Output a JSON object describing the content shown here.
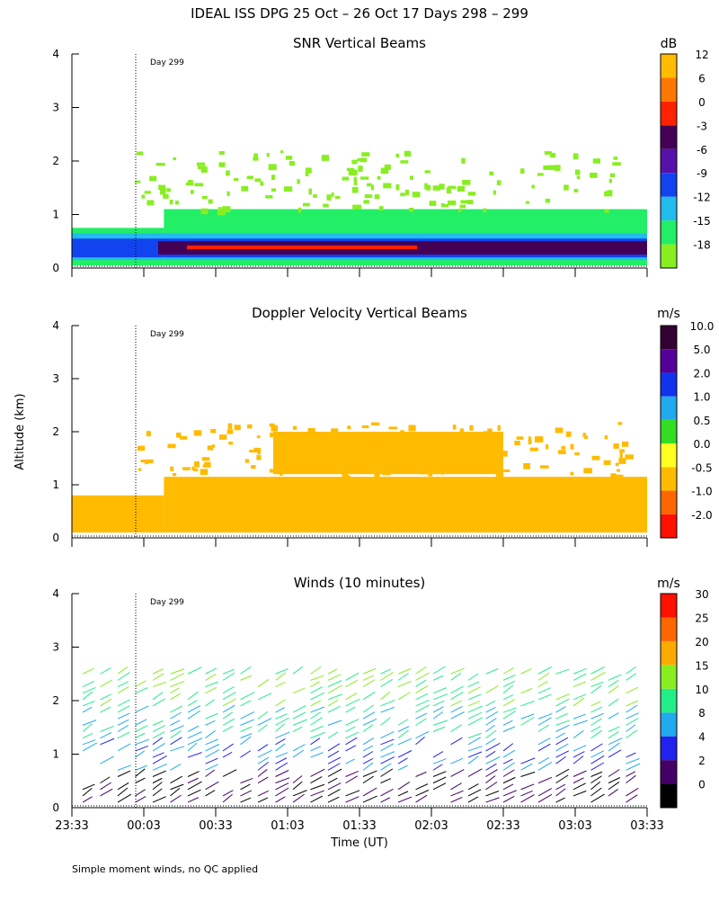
{
  "title": "IDEAL ISS DPG  25 Oct – 26 Oct 17 Days 298 – 299",
  "y_axis_label": "Altitude (km)",
  "footnote": "Simple moment winds, no QC applied",
  "chart_data": [
    {
      "type": "heatmap",
      "title": "SNR Vertical Beams",
      "unit": "dB",
      "day_marker": "Day 299",
      "ylim": [
        0,
        4
      ],
      "yticks": [
        "0",
        "1",
        "2",
        "3",
        "4"
      ],
      "xticks": [
        "23:33",
        "00:03",
        "00:33",
        "01:03",
        "01:33",
        "02:03",
        "02:33",
        "03:03",
        "03:33"
      ],
      "colorbar": [
        {
          "label": "-18",
          "color": "#88ee22"
        },
        {
          "label": "-15",
          "color": "#22ee66"
        },
        {
          "label": "-12",
          "color": "#22bbee"
        },
        {
          "label": "-9",
          "color": "#1144ee"
        },
        {
          "label": "-6",
          "color": "#5511aa"
        },
        {
          "label": "-3",
          "color": "#440055"
        },
        {
          "label": "0",
          "color": "#ff2200"
        },
        {
          "label": "6",
          "color": "#ff7700"
        },
        {
          "label": "12",
          "color": "#ffbb00"
        }
      ],
      "layers": [
        {
          "x": [
            0,
            0.16
          ],
          "y": [
            0.05,
            0.75
          ],
          "value": -15
        },
        {
          "x": [
            0.16,
            1.0
          ],
          "y": [
            0.05,
            1.1
          ],
          "value": -15
        },
        {
          "x": [
            0,
            1.0
          ],
          "y": [
            0.15,
            0.65
          ],
          "value": -12
        },
        {
          "x": [
            0,
            1.0
          ],
          "y": [
            0.2,
            0.55
          ],
          "value": -9
        },
        {
          "x": [
            0.15,
            1.0
          ],
          "y": [
            0.25,
            0.5
          ],
          "value": -3
        },
        {
          "x": [
            0.2,
            0.6
          ],
          "y": [
            0.35,
            0.42
          ],
          "value": 0
        }
      ]
    },
    {
      "type": "heatmap",
      "title": "Doppler Velocity Vertical Beams",
      "unit": "m/s",
      "day_marker": "Day 299",
      "ylim": [
        0,
        4
      ],
      "yticks": [
        "0",
        "1",
        "2",
        "3",
        "4"
      ],
      "xticks": [
        "23:33",
        "00:03",
        "00:33",
        "01:03",
        "01:33",
        "02:03",
        "02:33",
        "03:03",
        "03:33"
      ],
      "colorbar": [
        {
          "label": "-2.0",
          "color": "#ff1100"
        },
        {
          "label": "-1.0",
          "color": "#ff6600"
        },
        {
          "label": "-0.5",
          "color": "#ffbb00"
        },
        {
          "label": "0.0",
          "color": "#ffff22"
        },
        {
          "label": "0.5",
          "color": "#33dd22"
        },
        {
          "label": "1.0",
          "color": "#22aaee"
        },
        {
          "label": "2.0",
          "color": "#1133ee"
        },
        {
          "label": "5.0",
          "color": "#550099"
        },
        {
          "label": "10.0",
          "color": "#330033"
        }
      ],
      "layers": [
        {
          "x": [
            0,
            0.16
          ],
          "y": [
            0.1,
            0.8
          ],
          "value": -0.5
        },
        {
          "x": [
            0.16,
            1.0
          ],
          "y": [
            0.1,
            1.15
          ],
          "value": -0.5
        },
        {
          "x": [
            0.35,
            0.75
          ],
          "y": [
            1.2,
            2.0
          ],
          "value": -0.5
        }
      ]
    },
    {
      "type": "wind_barbs",
      "title": "Winds (10 minutes)",
      "unit": "m/s",
      "day_marker": "Day 299",
      "xlabel": "Time (UT)",
      "ylim": [
        0,
        4
      ],
      "yticks": [
        "0",
        "1",
        "2",
        "3",
        "4"
      ],
      "xticks": [
        "23:33",
        "00:03",
        "00:33",
        "01:03",
        "01:33",
        "02:03",
        "02:33",
        "03:03",
        "03:33"
      ],
      "colorbar": [
        {
          "label": "0",
          "color": "#000000"
        },
        {
          "label": "2",
          "color": "#440066"
        },
        {
          "label": "4",
          "color": "#2222ee"
        },
        {
          "label": "8",
          "color": "#22aaee"
        },
        {
          "label": "10",
          "color": "#22ee88"
        },
        {
          "label": "15",
          "color": "#88ee22"
        },
        {
          "label": "20",
          "color": "#ffaa00"
        },
        {
          "label": "25",
          "color": "#ff6600"
        },
        {
          "label": "30",
          "color": "#ff1100"
        }
      ]
    }
  ]
}
